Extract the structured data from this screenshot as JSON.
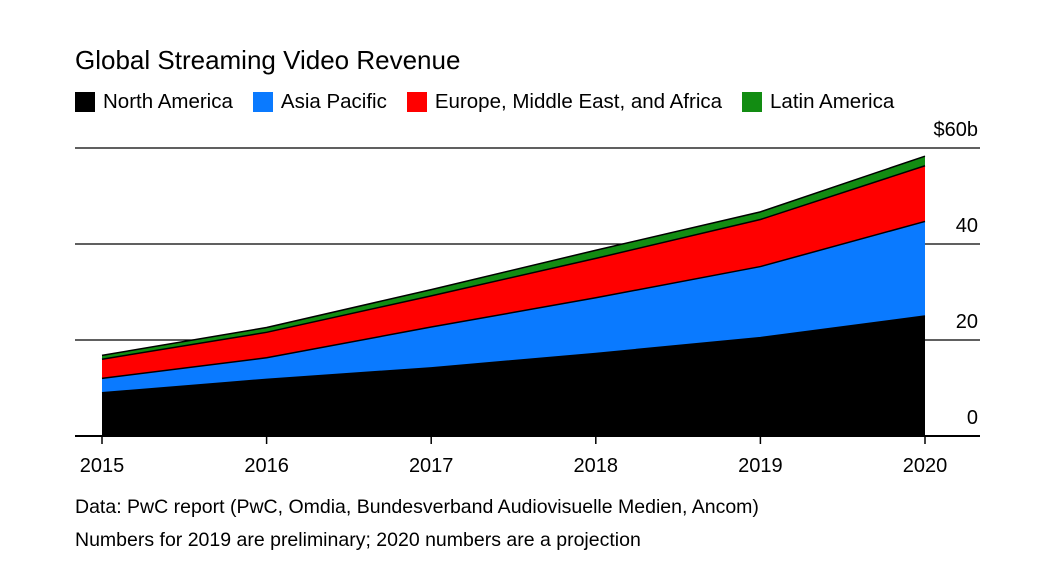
{
  "chart_data": {
    "type": "area",
    "stacked": true,
    "title": "Global Streaming Video Revenue",
    "x": [
      "2015",
      "2016",
      "2017",
      "2018",
      "2019",
      "2020"
    ],
    "series": [
      {
        "name": "North America",
        "color": "#000000",
        "values": [
          9,
          11.8,
          14.2,
          17.2,
          20.5,
          25
        ]
      },
      {
        "name": "Asia Pacific",
        "color": "#0a7aff",
        "values": [
          3,
          4.5,
          8.5,
          11.6,
          14.8,
          19.7
        ]
      },
      {
        "name": "Europe, Middle East, and Africa",
        "color": "#ff0000",
        "values": [
          4,
          5.3,
          6.5,
          8.2,
          9.8,
          11.6
        ]
      },
      {
        "name": "Latin America",
        "color": "#128c12",
        "values": [
          0.8,
          1,
          1.3,
          1.7,
          1.6,
          2
        ]
      }
    ],
    "y_ticks": [
      {
        "value": 0,
        "label": "0"
      },
      {
        "value": 20,
        "label": "20"
      },
      {
        "value": 40,
        "label": "40"
      },
      {
        "value": 60,
        "label": "$60b"
      }
    ],
    "ylim": [
      0,
      60
    ],
    "ytick_side": "right",
    "legend_position": "top",
    "grid": "horizontal"
  },
  "source_note": "Data: PwC report (PwC, Omdia, Bundesverband Audiovisuelle Medien, Ancom)",
  "footnote": "Numbers for 2019 are preliminary; 2020 numbers are a projection"
}
